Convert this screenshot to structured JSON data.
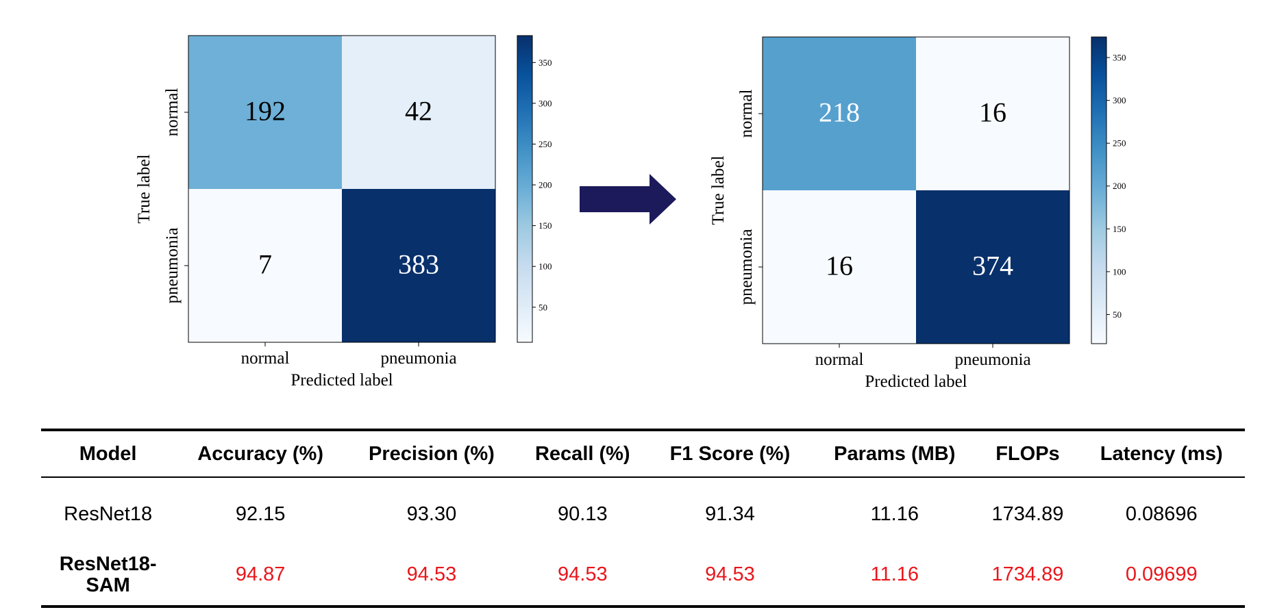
{
  "colors": {
    "arrow": "#1c1a5a",
    "highlight": "#e8161b",
    "cmap_blues_low": "#f7fbff",
    "cmap_blues_high": "#08306b"
  },
  "chart_data": [
    {
      "type": "heatmap",
      "title": "",
      "xlabel": "Predicted label",
      "ylabel": "True label",
      "x_categories": [
        "normal",
        "pneumonia"
      ],
      "y_categories": [
        "normal",
        "pneumonia"
      ],
      "values": [
        [
          192,
          42
        ],
        [
          7,
          383
        ]
      ],
      "colorbar": {
        "vmin": 7,
        "vmax": 383,
        "ticks": [
          50,
          100,
          150,
          200,
          250,
          300,
          350
        ]
      }
    },
    {
      "type": "heatmap",
      "title": "",
      "xlabel": "Predicted label",
      "ylabel": "True label",
      "x_categories": [
        "normal",
        "pneumonia"
      ],
      "y_categories": [
        "normal",
        "pneumonia"
      ],
      "values": [
        [
          218,
          16
        ],
        [
          16,
          374
        ]
      ],
      "colorbar": {
        "vmin": 16,
        "vmax": 374,
        "ticks": [
          50,
          100,
          150,
          200,
          250,
          300,
          350
        ]
      }
    },
    {
      "type": "table",
      "columns": [
        "Model",
        "Accuracy (%)",
        "Precision (%)",
        "Recall (%)",
        "F1 Score (%)",
        "Params (MB)",
        "FLOPs",
        "Latency (ms)"
      ],
      "rows": [
        {
          "model": "ResNet18",
          "model_bold": false,
          "highlight": false,
          "values": [
            "92.15",
            "93.30",
            "90.13",
            "91.34",
            "11.16",
            "1734.89",
            "0.08696"
          ]
        },
        {
          "model": "ResNet18-\nSAM",
          "model_bold": true,
          "highlight": true,
          "values": [
            "94.87",
            "94.53",
            "94.53",
            "94.53",
            "11.16",
            "1734.89",
            "0.09699"
          ]
        }
      ]
    }
  ]
}
